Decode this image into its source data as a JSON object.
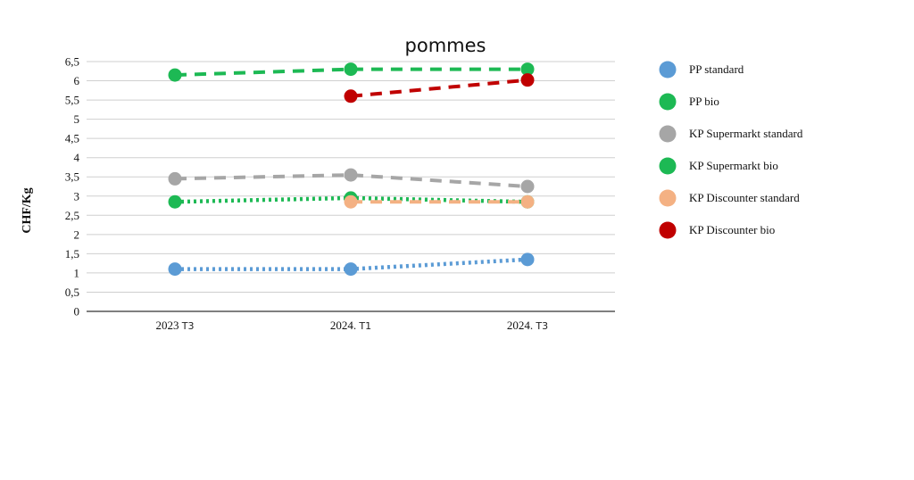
{
  "chart_data": {
    "type": "line",
    "title": "pommes",
    "ylabel": "CHF/Kg",
    "xlabel": "",
    "categories": [
      {
        "main": "2023",
        "sub": "T3"
      },
      {
        "main": "2024.",
        "sub": "T1"
      },
      {
        "main": "2024.",
        "sub": "T3"
      }
    ],
    "ylim": [
      0,
      6.5
    ],
    "yticks": [
      "0",
      "0,5",
      "1",
      "1,5",
      "2",
      "2,5",
      "3",
      "3,5",
      "4",
      "4,5",
      "5",
      "5,5",
      "6",
      "6,5"
    ],
    "grid": true,
    "legend_position": "right",
    "series": [
      {
        "name": "PP standard",
        "color": "#5b9bd5",
        "style": "dotted",
        "values": [
          1.1,
          1.1,
          1.35
        ]
      },
      {
        "name": "PP bio",
        "color": "#1db954",
        "style": "dashed",
        "values": [
          6.15,
          6.3,
          6.3
        ]
      },
      {
        "name": "KP Supermarkt standard",
        "color": "#a6a6a6",
        "style": "dashed",
        "values": [
          3.45,
          3.55,
          3.25
        ]
      },
      {
        "name": "KP Supermarkt bio",
        "color": "#1db954",
        "style": "dotted",
        "values": [
          2.85,
          2.95,
          2.85
        ]
      },
      {
        "name": "KP Discounter standard",
        "color": "#f4b183",
        "style": "dashed",
        "values": [
          null,
          2.85,
          2.85
        ]
      },
      {
        "name": "KP Discounter bio",
        "color": "#c00000",
        "style": "dashed",
        "values": [
          null,
          5.6,
          6.02
        ]
      }
    ]
  }
}
